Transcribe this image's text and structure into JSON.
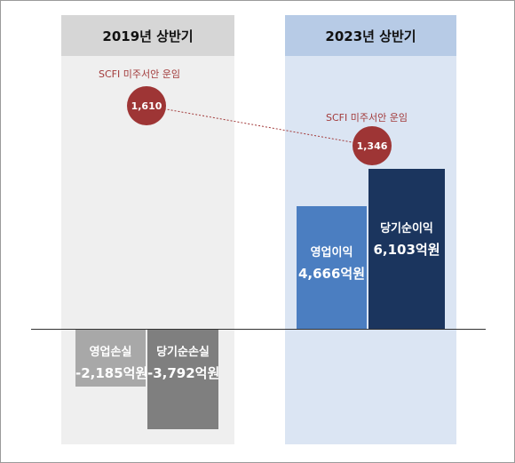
{
  "chart_data": {
    "type": "bar",
    "periods": [
      {
        "title": "2019년 상반기",
        "scfi_label": "SCFI 미주서안 운임",
        "scfi_value": "1,610",
        "bars": [
          {
            "name": "영업손실",
            "value": -2185,
            "value_label": "-2,185억원",
            "color": "#a8a8a8"
          },
          {
            "name": "당기순손실",
            "value": -3792,
            "value_label": "-3,792억원",
            "color": "#7f7f7f"
          }
        ]
      },
      {
        "title": "2023년 상반기",
        "scfi_label": "SCFI 미주서안 운임",
        "scfi_value": "1,346",
        "bars": [
          {
            "name": "영업이익",
            "value": 4666,
            "value_label": "4,666억원",
            "color": "#4b7ec1"
          },
          {
            "name": "당기순이익",
            "value": 6103,
            "value_label": "6,103억원",
            "color": "#1b355e"
          }
        ]
      }
    ],
    "connector": {
      "from": "1,610",
      "to": "1,346",
      "style": "dashed",
      "color": "#a23a3a"
    }
  }
}
